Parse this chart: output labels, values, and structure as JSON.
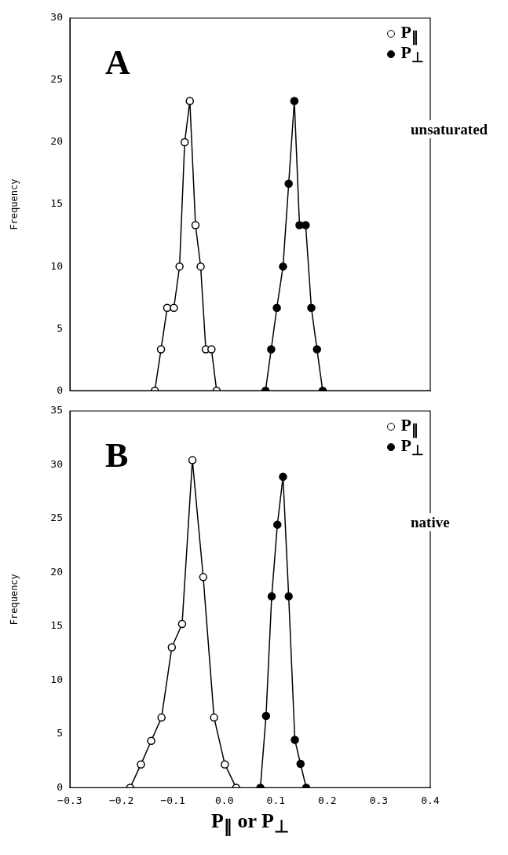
{
  "chart_data": [
    {
      "type": "line",
      "ylabel": "Frequency",
      "xlim": [
        -0.3,
        0.4
      ],
      "xticks": [
        -0.3,
        -0.2,
        -0.1,
        0.0,
        0.1,
        0.2,
        0.3,
        0.4
      ],
      "ylim": [
        0,
        30
      ],
      "yticks": [
        0,
        5,
        10,
        15,
        20,
        25,
        30
      ],
      "tick_labels": "y",
      "grid": false,
      "legend": "top right",
      "marker": "circle",
      "line_style": "solid",
      "annotations": [
        "A",
        "unsaturated"
      ],
      "series": [
        {
          "name": "P$_{∥}$",
          "color": "#ffffff",
          "x": [
            -0.135,
            -0.123,
            -0.111,
            -0.098,
            -0.087,
            -0.077,
            -0.067,
            -0.056,
            -0.046,
            -0.036,
            -0.025,
            -0.015
          ],
          "values": [
            0,
            3.33,
            6.67,
            6.67,
            10,
            20,
            23.33,
            13.33,
            10,
            3.33,
            3.33,
            0
          ]
        },
        {
          "name": "P$_{⊥}$",
          "color": "#000000",
          "x": [
            0.08,
            0.091,
            0.102,
            0.114,
            0.125,
            0.136,
            0.146,
            0.158,
            0.169,
            0.18,
            0.191
          ],
          "values": [
            0,
            3.33,
            6.67,
            10,
            16.67,
            23.33,
            13.33,
            13.33,
            6.67,
            3.33,
            0
          ]
        }
      ]
    },
    {
      "type": "line",
      "ylabel": "Frequency",
      "xlabel": "P$_{∥}$ or P$_{⊥}$",
      "xlim": [
        -0.3,
        0.4
      ],
      "xticks": [
        -0.3,
        -0.2,
        -0.1,
        {
          "value": 0,
          "label": "0.0"
        },
        0.1,
        0.2,
        0.3,
        0.4
      ],
      "ylim": [
        0,
        35
      ],
      "yticks": [
        0,
        5,
        10,
        15,
        20,
        25,
        30,
        35
      ],
      "grid": false,
      "legend": "top right",
      "marker": "circle",
      "line_style": "solid",
      "annotations": [
        "B",
        "native"
      ],
      "series": [
        {
          "name": "P$_{∥}$",
          "color": "#ffffff",
          "x": [
            -0.183,
            -0.162,
            -0.142,
            -0.122,
            -0.102,
            -0.082,
            -0.062,
            -0.041,
            -0.02,
            0.001,
            0.023
          ],
          "values": [
            0,
            2.17,
            4.35,
            6.52,
            13.04,
            15.22,
            30.43,
            19.57,
            6.52,
            2.17,
            0
          ]
        },
        {
          "name": "P$_{⊥}$",
          "color": "#000000",
          "x": [
            0.07,
            0.081,
            0.092,
            0.103,
            0.114,
            0.125,
            0.137,
            0.148,
            0.159
          ],
          "values": [
            0,
            6.67,
            17.78,
            24.44,
            28.89,
            17.78,
            4.44,
            2.22,
            0
          ]
        }
      ]
    }
  ]
}
